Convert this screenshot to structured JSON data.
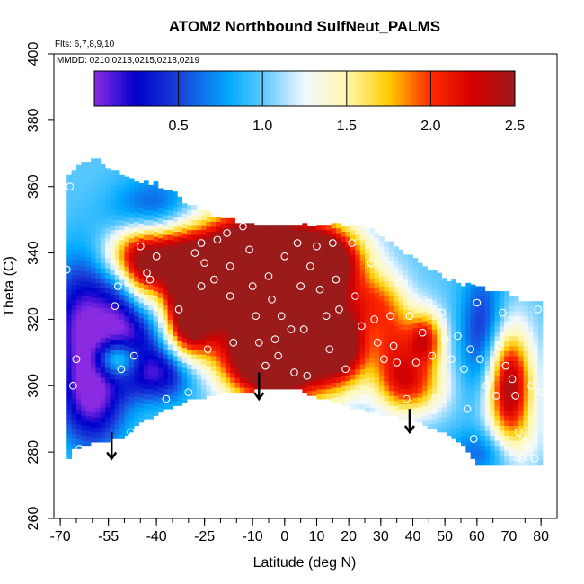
{
  "chart_data": {
    "type": "heatmap",
    "title": "ATOM2 Northbound SulfNeut_PALMS",
    "subtitle_lines": [
      "Flts: 6,7,8,9,10",
      "MMDD: 0210,0213,0215,0218,0219"
    ],
    "xlabel": "Latitude (deg N)",
    "ylabel": "Theta (C)",
    "xlim": [
      -70,
      80
    ],
    "ylim": [
      260,
      400
    ],
    "x_ticks": [
      -70,
      -55,
      -40,
      -25,
      -10,
      0,
      10,
      20,
      30,
      40,
      50,
      60,
      70,
      80
    ],
    "y_ticks": [
      260,
      280,
      300,
      320,
      340,
      360,
      380,
      400
    ],
    "colorbar": {
      "range": [
        0,
        2.5
      ],
      "ticks": [
        0.5,
        1.0,
        1.5,
        2.0,
        2.5
      ],
      "tick_labels": [
        "0.5",
        "1.0",
        "1.5",
        "2.0",
        "2.5"
      ],
      "stops": [
        {
          "v": 0.0,
          "c": "#8a2be2"
        },
        {
          "v": 0.25,
          "c": "#0000cc"
        },
        {
          "v": 0.5,
          "c": "#1a3fd9"
        },
        {
          "v": 0.8,
          "c": "#00aaff"
        },
        {
          "v": 1.0,
          "c": "#5cc8ff"
        },
        {
          "v": 1.25,
          "c": "#f2f8ff"
        },
        {
          "v": 1.5,
          "c": "#fff8b0"
        },
        {
          "v": 1.75,
          "c": "#ffcc00"
        },
        {
          "v": 2.0,
          "c": "#ff2a00"
        },
        {
          "v": 2.25,
          "c": "#d40000"
        },
        {
          "v": 2.5,
          "c": "#9b1b1b"
        }
      ]
    },
    "floor": [
      [
        -68,
        277
      ],
      [
        -66,
        281
      ],
      [
        -60,
        283
      ],
      [
        -55,
        284
      ],
      [
        -50,
        285
      ],
      [
        -45,
        289
      ],
      [
        -40,
        292
      ],
      [
        -35,
        294
      ],
      [
        -30,
        296
      ],
      [
        -25,
        297
      ],
      [
        -20,
        298
      ],
      [
        -15,
        298.5
      ],
      [
        -10,
        299
      ],
      [
        -5,
        299.5
      ],
      [
        0,
        300
      ],
      [
        5,
        299
      ],
      [
        10,
        297
      ],
      [
        15,
        296
      ],
      [
        20,
        294
      ],
      [
        25,
        293
      ],
      [
        30,
        292
      ],
      [
        35,
        291
      ],
      [
        40,
        290
      ],
      [
        45,
        288
      ],
      [
        50,
        286
      ],
      [
        55,
        283
      ],
      [
        58,
        279
      ],
      [
        60,
        277
      ],
      [
        70,
        276
      ],
      [
        80,
        276
      ]
    ],
    "ceiling": [
      [
        -68,
        361
      ],
      [
        -66,
        364
      ],
      [
        -64,
        366
      ],
      [
        -62,
        367
      ],
      [
        -58,
        368
      ],
      [
        -55,
        365
      ],
      [
        -50,
        363
      ],
      [
        -45,
        361
      ],
      [
        -40,
        360
      ],
      [
        -35,
        358
      ],
      [
        -30,
        354
      ],
      [
        -25,
        352
      ],
      [
        -20,
        350
      ],
      [
        -15,
        349
      ],
      [
        -10,
        348
      ],
      [
        -5,
        348
      ],
      [
        0,
        348
      ],
      [
        10,
        348
      ],
      [
        20,
        348
      ],
      [
        25,
        348
      ],
      [
        30,
        344
      ],
      [
        35,
        341
      ],
      [
        40,
        338
      ],
      [
        45,
        335
      ],
      [
        50,
        332
      ],
      [
        55,
        330
      ],
      [
        60,
        329
      ],
      [
        65,
        328
      ],
      [
        70,
        327
      ],
      [
        75,
        325
      ],
      [
        80,
        324
      ]
    ],
    "field_blobs": [
      {
        "x": -62,
        "y": 318,
        "sx": 8,
        "sy": 14,
        "a": -1.0
      },
      {
        "x": -47,
        "y": 318,
        "sx": 6,
        "sy": 10,
        "a": -0.9
      },
      {
        "x": -60,
        "y": 295,
        "sx": 7,
        "sy": 10,
        "a": -0.8
      },
      {
        "x": -40,
        "y": 350,
        "sx": 9,
        "sy": 8,
        "a": -0.8
      },
      {
        "x": -38,
        "y": 304,
        "sx": 8,
        "sy": 6,
        "a": -0.8
      },
      {
        "x": -50,
        "y": 340,
        "sx": 6,
        "sy": 6,
        "a": 0.6
      },
      {
        "x": -52,
        "y": 308,
        "sx": 5,
        "sy": 4,
        "a": 0.9
      },
      {
        "x": -45,
        "y": 331,
        "sx": 4,
        "sy": 10,
        "a": 0.6
      },
      {
        "x": -38,
        "y": 340,
        "sx": 8,
        "sy": 8,
        "a": 1.4
      },
      {
        "x": -30,
        "y": 320,
        "sx": 5,
        "sy": 9,
        "a": 1.2
      },
      {
        "x": -22,
        "y": 332,
        "sx": 10,
        "sy": 12,
        "a": 1.7
      },
      {
        "x": -8,
        "y": 338,
        "sx": 9,
        "sy": 10,
        "a": 1.8
      },
      {
        "x": 5,
        "y": 322,
        "sx": 10,
        "sy": 16,
        "a": 1.9
      },
      {
        "x": -6,
        "y": 308,
        "sx": 10,
        "sy": 8,
        "a": 1.8
      },
      {
        "x": 12,
        "y": 338,
        "sx": 9,
        "sy": 7,
        "a": 1.5
      },
      {
        "x": 18,
        "y": 312,
        "sx": 6,
        "sy": 8,
        "a": 1.3
      },
      {
        "x": 28,
        "y": 326,
        "sx": 6,
        "sy": 6,
        "a": 0.6
      },
      {
        "x": 34,
        "y": 312,
        "sx": 5,
        "sy": 10,
        "a": 0.9
      },
      {
        "x": 44,
        "y": 314,
        "sx": 4,
        "sy": 6,
        "a": 1.1
      },
      {
        "x": 40,
        "y": 300,
        "sx": 7,
        "sy": 6,
        "a": 0.9
      },
      {
        "x": 62,
        "y": 316,
        "sx": 5,
        "sy": 14,
        "a": -0.6
      },
      {
        "x": 70,
        "y": 300,
        "sx": 5,
        "sy": 12,
        "a": 1.5
      },
      {
        "x": 75,
        "y": 283,
        "sx": 5,
        "sy": 6,
        "a": 0.2
      },
      {
        "x": 62,
        "y": 280,
        "sx": 8,
        "sy": 5,
        "a": -0.4
      }
    ],
    "sample_points": [
      [
        -67,
        360
      ],
      [
        -68,
        335
      ],
      [
        -66,
        300
      ],
      [
        -65,
        308
      ],
      [
        -64,
        281
      ],
      [
        -52,
        330
      ],
      [
        -53,
        324
      ],
      [
        -51,
        305
      ],
      [
        -47,
        309
      ],
      [
        -48,
        286
      ],
      [
        -45,
        342
      ],
      [
        -43,
        334
      ],
      [
        -42,
        332
      ],
      [
        -40,
        339
      ],
      [
        -37,
        296
      ],
      [
        -33,
        323
      ],
      [
        -30,
        298
      ],
      [
        -28,
        340
      ],
      [
        -26,
        343
      ],
      [
        -26,
        330
      ],
      [
        -25,
        337
      ],
      [
        -24,
        311
      ],
      [
        -22,
        332
      ],
      [
        -21,
        344
      ],
      [
        -18,
        346
      ],
      [
        -17,
        336
      ],
      [
        -17,
        327
      ],
      [
        -16,
        313
      ],
      [
        -13,
        348
      ],
      [
        -11,
        341
      ],
      [
        -10,
        330
      ],
      [
        -9,
        321
      ],
      [
        -8,
        313
      ],
      [
        -6,
        306
      ],
      [
        -5,
        333
      ],
      [
        -4,
        326
      ],
      [
        -3,
        314
      ],
      [
        -2,
        309
      ],
      [
        -1,
        321
      ],
      [
        0,
        339
      ],
      [
        2,
        317
      ],
      [
        3,
        304
      ],
      [
        4,
        343
      ],
      [
        5,
        330
      ],
      [
        6,
        317
      ],
      [
        7,
        303
      ],
      [
        8,
        336
      ],
      [
        10,
        342
      ],
      [
        11,
        329
      ],
      [
        13,
        321
      ],
      [
        14,
        311
      ],
      [
        15,
        343
      ],
      [
        16,
        332
      ],
      [
        17,
        323
      ],
      [
        19,
        305
      ],
      [
        21,
        343
      ],
      [
        22,
        327
      ],
      [
        24,
        318
      ],
      [
        25,
        296
      ],
      [
        27,
        337
      ],
      [
        28,
        320
      ],
      [
        29,
        313
      ],
      [
        31,
        308
      ],
      [
        33,
        321
      ],
      [
        34,
        312
      ],
      [
        35,
        307
      ],
      [
        36,
        331
      ],
      [
        38,
        296
      ],
      [
        39,
        321
      ],
      [
        41,
        307
      ],
      [
        43,
        316
      ],
      [
        45,
        325
      ],
      [
        46,
        309
      ],
      [
        47,
        296
      ],
      [
        49,
        322
      ],
      [
        50,
        314
      ],
      [
        52,
        308
      ],
      [
        54,
        315
      ],
      [
        56,
        305
      ],
      [
        58,
        311
      ],
      [
        60,
        325
      ],
      [
        61,
        308
      ],
      [
        63,
        300
      ],
      [
        64,
        302
      ],
      [
        66,
        297
      ],
      [
        67,
        312
      ],
      [
        68,
        322
      ],
      [
        69,
        306
      ],
      [
        71,
        302
      ],
      [
        72,
        297
      ],
      [
        73,
        286
      ],
      [
        74,
        278
      ],
      [
        75,
        283
      ],
      [
        76,
        281
      ],
      [
        78,
        278
      ],
      [
        79,
        323
      ],
      [
        80,
        298
      ],
      [
        77,
        300
      ],
      [
        57,
        293
      ],
      [
        59,
        284
      ]
    ],
    "arrows": [
      {
        "x": -54,
        "y_top": 286,
        "y_tip": 278
      },
      {
        "x": -8,
        "y_top": 304,
        "y_tip": 296
      },
      {
        "x": 39,
        "y_top": 293,
        "y_tip": 286
      }
    ]
  }
}
